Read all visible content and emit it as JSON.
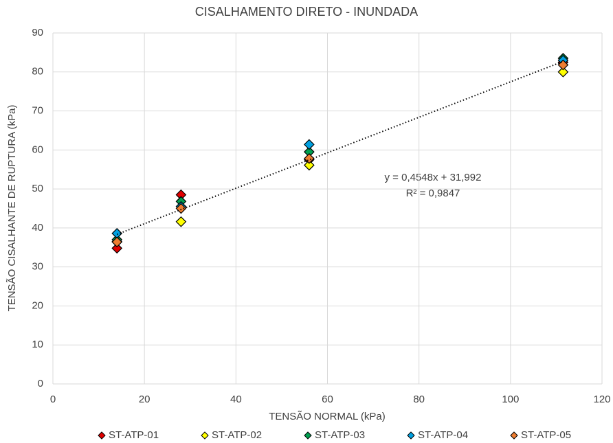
{
  "chart_data": {
    "type": "scatter",
    "title": "CISALHAMENTO DIRETO - INUNDADA",
    "x_label": "TENSÃO NORMAL (kPa)",
    "y_label": "TENSÃO CISALHANTE DE RUPTURA (kPa)",
    "xlim": [
      0,
      120
    ],
    "xticks": [
      0,
      20,
      40,
      60,
      80,
      100,
      120
    ],
    "ylim": [
      0,
      90
    ],
    "yticks": [
      0,
      10,
      20,
      30,
      40,
      50,
      60,
      70,
      80,
      90
    ],
    "grid": true,
    "legend": "bottom",
    "x": [
      14,
      28,
      56,
      111.5
    ],
    "series": [
      {
        "name": "ST-ATP-01",
        "color": "#e00000",
        "values": [
          34.8,
          48.5,
          57.5,
          82.5
        ]
      },
      {
        "name": "ST-ATP-02",
        "color": "#ffff00",
        "values": [
          36.5,
          41.6,
          56.1,
          80.0
        ]
      },
      {
        "name": "ST-ATP-03",
        "color": "#00a050",
        "values": [
          37.0,
          46.8,
          59.5,
          83.5
        ]
      },
      {
        "name": "ST-ATP-04",
        "color": "#00a0e0",
        "values": [
          38.6,
          45.5,
          61.4,
          83.0
        ]
      },
      {
        "name": "ST-ATP-05",
        "color": "#ed7d31",
        "values": [
          36.4,
          45.0,
          57.8,
          81.8
        ]
      }
    ],
    "trendline": {
      "slope": 0.4548,
      "intercept": 31.992,
      "label": "y = 0,4548x + 31,992",
      "r2_label": "R² = 0,9847"
    }
  }
}
